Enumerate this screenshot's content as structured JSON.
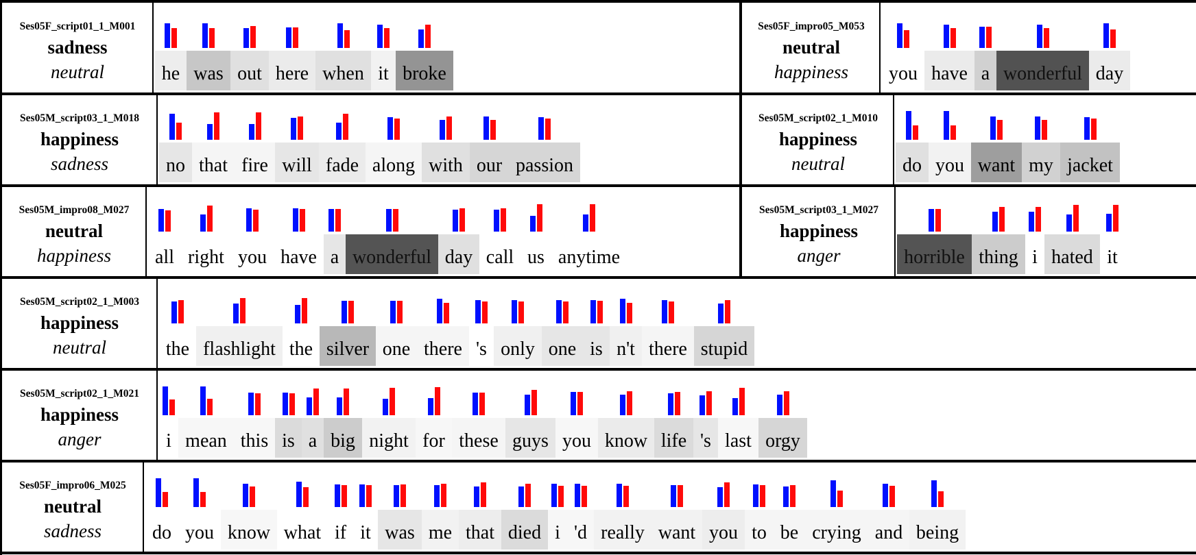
{
  "colors": {
    "first_bar": "#0010ff",
    "second_bar": "#ff0a0a",
    "border": "#000000"
  },
  "panels": [
    {
      "id": "Ses05F_script01_1_M001",
      "emotion_bold": "sadness",
      "emotion_italic": "neutral",
      "words": [
        {
          "text": "he",
          "shade": 0.93,
          "bars": [
            0.85,
            0.7
          ]
        },
        {
          "text": "was",
          "shade": 0.78,
          "bars": [
            0.85,
            0.7
          ]
        },
        {
          "text": "out",
          "shade": 0.88,
          "bars": [
            0.7,
            0.75
          ]
        },
        {
          "text": "here",
          "shade": 0.92,
          "bars": [
            0.72,
            0.72
          ]
        },
        {
          "text": "when",
          "shade": 0.88,
          "bars": [
            0.85,
            0.62
          ]
        },
        {
          "text": "it",
          "shade": 0.95,
          "bars": [
            0.82,
            0.68
          ]
        },
        {
          "text": "broke",
          "shade": 0.58,
          "bars": [
            0.65,
            0.82
          ]
        }
      ]
    },
    {
      "id": "Ses05F_impro05_M053",
      "emotion_bold": "neutral",
      "emotion_italic": "happiness",
      "words": [
        {
          "text": "you",
          "shade": 1.0,
          "bars": [
            0.85,
            0.62
          ]
        },
        {
          "text": "have",
          "shade": 0.92,
          "bars": [
            0.82,
            0.68
          ]
        },
        {
          "text": "a",
          "shade": 0.82,
          "bars": [
            0.73,
            0.73
          ]
        },
        {
          "text": "wonderful",
          "shade": 0.32,
          "bars": [
            0.82,
            0.7
          ]
        },
        {
          "text": "day",
          "shade": 0.92,
          "bars": [
            0.85,
            0.65
          ]
        }
      ]
    },
    {
      "id": "Ses05M_script03_1_M018",
      "emotion_bold": "happiness",
      "emotion_italic": "sadness",
      "words": [
        {
          "text": "no",
          "shade": 0.9,
          "bars": [
            0.9,
            0.6
          ]
        },
        {
          "text": "that",
          "shade": 0.96,
          "bars": [
            0.55,
            0.95
          ]
        },
        {
          "text": "fire",
          "shade": 0.96,
          "bars": [
            0.55,
            0.95
          ]
        },
        {
          "text": "will",
          "shade": 0.9,
          "bars": [
            0.75,
            0.8
          ]
        },
        {
          "text": "fade",
          "shade": 0.92,
          "bars": [
            0.6,
            0.9
          ]
        },
        {
          "text": "along",
          "shade": 0.96,
          "bars": [
            0.78,
            0.74
          ]
        },
        {
          "text": "with",
          "shade": 0.88,
          "bars": [
            0.7,
            0.8
          ]
        },
        {
          "text": "our",
          "shade": 0.84,
          "bars": [
            0.82,
            0.7
          ]
        },
        {
          "text": "passion",
          "shade": 0.84,
          "bars": [
            0.78,
            0.74
          ]
        }
      ]
    },
    {
      "id": "Ses05M_script02_1_M010",
      "emotion_bold": "happiness",
      "emotion_italic": "neutral",
      "words": [
        {
          "text": "do",
          "shade": 0.88,
          "bars": [
            1.0,
            0.5
          ]
        },
        {
          "text": "you",
          "shade": 0.95,
          "bars": [
            1.0,
            0.5
          ]
        },
        {
          "text": "want",
          "shade": 0.62,
          "bars": [
            0.8,
            0.7
          ]
        },
        {
          "text": "my",
          "shade": 0.82,
          "bars": [
            0.82,
            0.7
          ]
        },
        {
          "text": "jacket",
          "shade": 0.76,
          "bars": [
            0.78,
            0.74
          ]
        }
      ]
    },
    {
      "id": "Ses05M_impro08_M027",
      "emotion_bold": "neutral",
      "emotion_italic": "happiness",
      "words": [
        {
          "text": "all",
          "shade": 1.0,
          "bars": [
            0.78,
            0.74
          ]
        },
        {
          "text": "right",
          "shade": 1.0,
          "bars": [
            0.6,
            0.9
          ]
        },
        {
          "text": "you",
          "shade": 1.0,
          "bars": [
            0.8,
            0.75
          ]
        },
        {
          "text": "have",
          "shade": 1.0,
          "bars": [
            0.8,
            0.78
          ]
        },
        {
          "text": "a",
          "shade": 0.9,
          "bars": [
            0.78,
            0.78
          ]
        },
        {
          "text": "wonderful",
          "shade": 0.33,
          "bars": [
            0.78,
            0.78
          ]
        },
        {
          "text": "day",
          "shade": 0.88,
          "bars": [
            0.75,
            0.8
          ]
        },
        {
          "text": "call",
          "shade": 1.0,
          "bars": [
            0.75,
            0.8
          ]
        },
        {
          "text": "us",
          "shade": 1.0,
          "bars": [
            0.55,
            0.95
          ]
        },
        {
          "text": "anytime",
          "shade": 1.0,
          "bars": [
            0.6,
            0.95
          ]
        }
      ]
    },
    {
      "id": "Ses05M_script03_1_M027",
      "emotion_bold": "happiness",
      "emotion_italic": "anger",
      "words": [
        {
          "text": "horrible",
          "shade": 0.33,
          "bars": [
            0.78,
            0.78
          ]
        },
        {
          "text": "thing",
          "shade": 0.8,
          "bars": [
            0.7,
            0.86
          ]
        },
        {
          "text": "i",
          "shade": 1.0,
          "bars": [
            0.7,
            0.86
          ]
        },
        {
          "text": "hated",
          "shade": 0.86,
          "bars": [
            0.6,
            0.92
          ]
        },
        {
          "text": "it",
          "shade": 1.0,
          "bars": [
            0.62,
            0.92
          ]
        }
      ]
    },
    {
      "id": "Ses05M_script02_1_M003",
      "emotion_bold": "happiness",
      "emotion_italic": "neutral",
      "words": [
        {
          "text": "the",
          "shade": 1.0,
          "bars": [
            0.75,
            0.8
          ]
        },
        {
          "text": "flashlight",
          "shade": 0.94,
          "bars": [
            0.7,
            0.88
          ]
        },
        {
          "text": "the",
          "shade": 1.0,
          "bars": [
            0.65,
            0.88
          ]
        },
        {
          "text": "silver",
          "shade": 0.72,
          "bars": [
            0.78,
            0.78
          ]
        },
        {
          "text": "one",
          "shade": 0.96,
          "bars": [
            0.78,
            0.78
          ]
        },
        {
          "text": "there",
          "shade": 0.96,
          "bars": [
            0.85,
            0.72
          ]
        },
        {
          "text": "'s",
          "shade": 1.0,
          "bars": [
            0.8,
            0.76
          ]
        },
        {
          "text": "only",
          "shade": 0.94,
          "bars": [
            0.8,
            0.75
          ]
        },
        {
          "text": "one",
          "shade": 0.9,
          "bars": [
            0.8,
            0.75
          ]
        },
        {
          "text": "is",
          "shade": 0.9,
          "bars": [
            0.8,
            0.78
          ]
        },
        {
          "text": "n't",
          "shade": 0.94,
          "bars": [
            0.85,
            0.72
          ]
        },
        {
          "text": "there",
          "shade": 0.96,
          "bars": [
            0.82,
            0.76
          ]
        },
        {
          "text": "stupid",
          "shade": 0.84,
          "bars": [
            0.7,
            0.82
          ]
        }
      ]
    },
    {
      "id": "Ses05M_script02_1_M021",
      "emotion_bold": "happiness",
      "emotion_italic": "anger",
      "words": [
        {
          "text": "i",
          "shade": 1.0,
          "bars": [
            1.0,
            0.55
          ]
        },
        {
          "text": "mean",
          "shade": 0.97,
          "bars": [
            1.0,
            0.58
          ]
        },
        {
          "text": "this",
          "shade": 0.97,
          "bars": [
            0.78,
            0.75
          ]
        },
        {
          "text": "is",
          "shade": 0.86,
          "bars": [
            0.78,
            0.75
          ]
        },
        {
          "text": "a",
          "shade": 0.88,
          "bars": [
            0.62,
            0.92
          ]
        },
        {
          "text": "big",
          "shade": 0.8,
          "bars": [
            0.62,
            0.92
          ]
        },
        {
          "text": "night",
          "shade": 0.95,
          "bars": [
            0.58,
            0.95
          ]
        },
        {
          "text": "for",
          "shade": 0.97,
          "bars": [
            0.6,
            0.97
          ]
        },
        {
          "text": "these",
          "shade": 0.96,
          "bars": [
            0.78,
            0.78
          ]
        },
        {
          "text": "guys",
          "shade": 0.9,
          "bars": [
            0.72,
            0.88
          ]
        },
        {
          "text": "you",
          "shade": 0.97,
          "bars": [
            0.8,
            0.8
          ]
        },
        {
          "text": "know",
          "shade": 0.92,
          "bars": [
            0.72,
            0.84
          ]
        },
        {
          "text": "life",
          "shade": 0.86,
          "bars": [
            0.75,
            0.82
          ]
        },
        {
          "text": "'s",
          "shade": 0.9,
          "bars": [
            0.7,
            0.84
          ]
        },
        {
          "text": "last",
          "shade": 0.97,
          "bars": [
            0.6,
            0.95
          ]
        },
        {
          "text": "orgy",
          "shade": 0.84,
          "bars": [
            0.72,
            0.84
          ]
        }
      ]
    },
    {
      "id": "Ses05F_impro06_M025",
      "emotion_bold": "neutral",
      "emotion_italic": "sadness",
      "words": [
        {
          "text": "do",
          "shade": 1.0,
          "bars": [
            1.0,
            0.52
          ]
        },
        {
          "text": "you",
          "shade": 1.0,
          "bars": [
            1.0,
            0.52
          ]
        },
        {
          "text": "know",
          "shade": 0.97,
          "bars": [
            0.8,
            0.72
          ]
        },
        {
          "text": "what",
          "shade": 1.0,
          "bars": [
            0.88,
            0.68
          ]
        },
        {
          "text": "if",
          "shade": 1.0,
          "bars": [
            0.78,
            0.76
          ]
        },
        {
          "text": "it",
          "shade": 1.0,
          "bars": [
            0.78,
            0.76
          ]
        },
        {
          "text": "was",
          "shade": 0.9,
          "bars": [
            0.75,
            0.78
          ]
        },
        {
          "text": "me",
          "shade": 0.95,
          "bars": [
            0.75,
            0.8
          ]
        },
        {
          "text": "that",
          "shade": 0.93,
          "bars": [
            0.72,
            0.86
          ]
        },
        {
          "text": "died",
          "shade": 0.86,
          "bars": [
            0.72,
            0.82
          ]
        },
        {
          "text": "i",
          "shade": 0.97,
          "bars": [
            0.82,
            0.74
          ]
        },
        {
          "text": "'d",
          "shade": 0.97,
          "bars": [
            0.82,
            0.74
          ]
        },
        {
          "text": "really",
          "shade": 0.95,
          "bars": [
            0.82,
            0.74
          ]
        },
        {
          "text": "want",
          "shade": 0.95,
          "bars": [
            0.75,
            0.76
          ]
        },
        {
          "text": "you",
          "shade": 0.93,
          "bars": [
            0.68,
            0.86
          ]
        },
        {
          "text": "to",
          "shade": 0.96,
          "bars": [
            0.78,
            0.76
          ]
        },
        {
          "text": "be",
          "shade": 0.96,
          "bars": [
            0.72,
            0.76
          ]
        },
        {
          "text": "crying",
          "shade": 0.96,
          "bars": [
            0.92,
            0.58
          ]
        },
        {
          "text": "and",
          "shade": 0.96,
          "bars": [
            0.8,
            0.74
          ]
        },
        {
          "text": "being",
          "shade": 0.95,
          "bars": [
            0.92,
            0.55
          ]
        }
      ]
    }
  ]
}
